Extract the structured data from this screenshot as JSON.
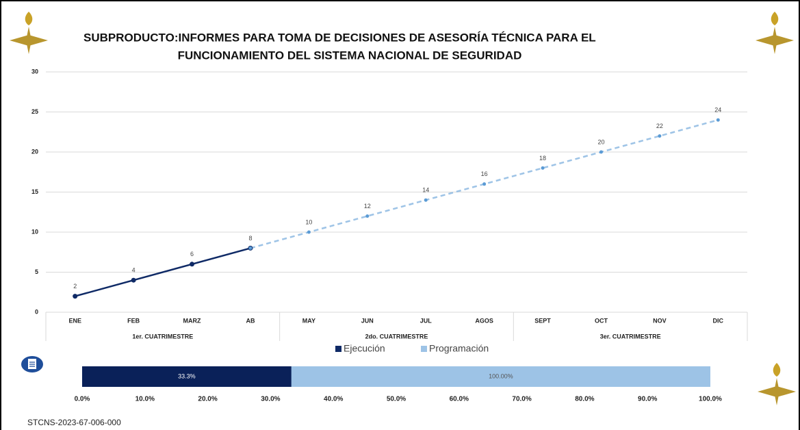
{
  "chart_data": [
    {
      "type": "line",
      "title": [
        "SUBPRODUCTO:INFORMES PARA TOMA DE DECISIONES DE ASESORÍA TÉCNICA PARA EL",
        "FUNCIONAMIENTO DEL SISTEMA NACIONAL DE SEGURIDAD"
      ],
      "categories": [
        "ENE",
        "FEB",
        "MARZ",
        "AB",
        "MAY",
        "JUN",
        "JUL",
        "AGOS",
        "SEPT",
        "OCT",
        "NOV",
        "DIC"
      ],
      "category_groups": [
        "1er. CUATRIMESTRE",
        "2do. CUATRIMESTRE",
        "3er. CUATRIMESTRE"
      ],
      "series": [
        {
          "name": "Ejecución",
          "color": "#0f2a66",
          "values": [
            2,
            4,
            6,
            8,
            null,
            null,
            null,
            null,
            null,
            null,
            null,
            null
          ]
        },
        {
          "name": "Programación",
          "color": "#9dc3e6",
          "values": [
            null,
            null,
            null,
            8,
            10,
            12,
            14,
            16,
            18,
            20,
            22,
            24
          ]
        }
      ],
      "ylim": [
        0,
        30
      ],
      "yticks": [
        0,
        5,
        10,
        15,
        20,
        25,
        30
      ],
      "grid": true,
      "legend": "bottom"
    },
    {
      "type": "bar",
      "orientation": "horizontal",
      "values": [
        100,
        33.3
      ],
      "value_labels": [
        "100.00%",
        "33.3%"
      ],
      "colors": [
        "#9dc3e6",
        "#0a2159"
      ],
      "xlim": [
        0,
        100
      ],
      "xticks": [
        {
          "value": 0,
          "label": "0.0%"
        },
        {
          "value": 10,
          "label": "10.0%"
        },
        {
          "value": 20,
          "label": "20.0%"
        },
        {
          "value": 30,
          "label": "30.0%"
        },
        {
          "value": 40,
          "label": "40.0%"
        },
        {
          "value": 50,
          "label": "50.0%"
        },
        {
          "value": 60,
          "label": "60.0%"
        },
        {
          "value": 70,
          "label": "70.0%"
        },
        {
          "value": 80,
          "label": "80.0%"
        },
        {
          "value": 90,
          "label": "90.0%"
        },
        {
          "value": 100,
          "label": "100.0%"
        }
      ]
    }
  ],
  "footer": "STCNS-2023-67-006-000"
}
